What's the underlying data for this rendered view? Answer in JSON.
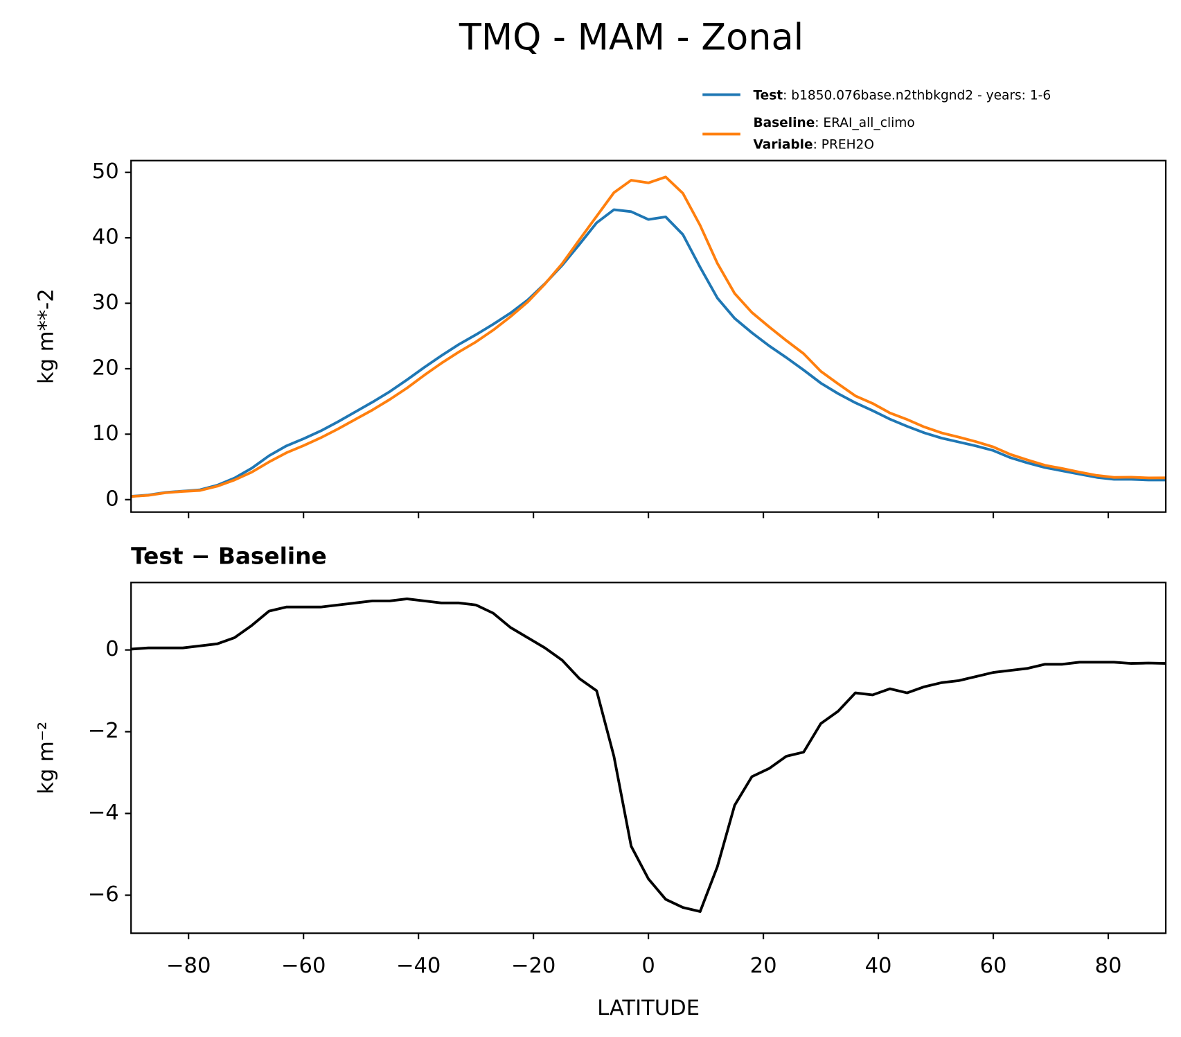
{
  "chart_data": [
    {
      "type": "line",
      "title": "TMQ - MAM - Zonal",
      "ylabel": "kg m**-2",
      "x": [
        -90,
        -87,
        -84,
        -81,
        -78,
        -75,
        -72,
        -69,
        -66,
        -63,
        -60,
        -57,
        -54,
        -51,
        -48,
        -45,
        -42,
        -39,
        -36,
        -33,
        -30,
        -27,
        -24,
        -21,
        -18,
        -15,
        -12,
        -9,
        -6,
        -3,
        0,
        3,
        6,
        9,
        12,
        15,
        18,
        21,
        24,
        27,
        30,
        33,
        36,
        39,
        42,
        45,
        48,
        51,
        54,
        57,
        60,
        63,
        66,
        69,
        72,
        75,
        78,
        81,
        84,
        87,
        90
      ],
      "series": [
        {
          "name": "Test",
          "legend_text": ": b1850.076base.n2thbkgnd2 - years: 1-6",
          "color": "#1f77b4",
          "values": [
            0.5,
            0.7,
            1.1,
            1.3,
            1.5,
            2.2,
            3.3,
            4.8,
            6.7,
            8.2,
            9.3,
            10.5,
            11.9,
            13.4,
            14.9,
            16.5,
            18.3,
            20.2,
            22.0,
            23.7,
            25.2,
            26.8,
            28.5,
            30.5,
            33.0,
            35.8,
            39.0,
            42.3,
            44.3,
            44.0,
            42.8,
            43.2,
            40.5,
            35.5,
            30.8,
            27.7,
            25.5,
            23.5,
            21.7,
            19.8,
            17.8,
            16.2,
            14.8,
            13.6,
            12.3,
            11.2,
            10.2,
            9.4,
            8.8,
            8.2,
            7.5,
            6.4,
            5.6,
            4.9,
            4.4,
            3.9,
            3.4,
            3.1,
            3.1,
            3.0,
            3.0
          ]
        },
        {
          "name": "Baseline",
          "legend_text": ": ERAI_all_climo",
          "color": "#ff7f0e",
          "values": [
            0.48,
            0.65,
            1.05,
            1.25,
            1.4,
            2.05,
            3.0,
            4.2,
            5.75,
            7.15,
            8.25,
            9.45,
            10.8,
            12.25,
            13.7,
            15.3,
            17.05,
            19.0,
            20.85,
            22.55,
            24.1,
            25.9,
            27.95,
            30.2,
            32.95,
            36.05,
            39.7,
            43.3,
            46.9,
            48.8,
            48.4,
            49.3,
            46.8,
            41.9,
            36.1,
            31.5,
            28.6,
            26.4,
            24.3,
            22.3,
            19.6,
            17.7,
            15.85,
            14.7,
            13.25,
            12.25,
            11.1,
            10.2,
            9.55,
            8.85,
            8.05,
            6.9,
            6.05,
            5.25,
            4.75,
            4.2,
            3.7,
            3.4,
            3.43,
            3.32,
            3.33
          ]
        }
      ],
      "legend_extra": {
        "label": "Variable",
        "text": ": PREH2O"
      },
      "xlim": [
        -90,
        90
      ],
      "xticks": [
        -80,
        -60,
        -40,
        -20,
        0,
        20,
        40,
        60,
        80
      ],
      "ylim": [
        -1.9,
        51.8
      ],
      "yticks": [
        0,
        10,
        20,
        30,
        40,
        50
      ],
      "grid": false
    },
    {
      "type": "line",
      "title": "Test − Baseline",
      "ylabel": "kg m⁻²",
      "xlabel": "LATITUDE",
      "x": [
        -90,
        -87,
        -84,
        -81,
        -78,
        -75,
        -72,
        -69,
        -66,
        -63,
        -60,
        -57,
        -54,
        -51,
        -48,
        -45,
        -42,
        -39,
        -36,
        -33,
        -30,
        -27,
        -24,
        -21,
        -18,
        -15,
        -12,
        -9,
        -6,
        -3,
        0,
        3,
        6,
        9,
        12,
        15,
        18,
        21,
        24,
        27,
        30,
        33,
        36,
        39,
        42,
        45,
        48,
        51,
        54,
        57,
        60,
        63,
        66,
        69,
        72,
        75,
        78,
        81,
        84,
        87,
        90
      ],
      "series": [
        {
          "color": "#000000",
          "values": [
            0.02,
            0.05,
            0.05,
            0.05,
            0.1,
            0.15,
            0.3,
            0.6,
            0.95,
            1.05,
            1.05,
            1.05,
            1.1,
            1.15,
            1.2,
            1.2,
            1.25,
            1.2,
            1.15,
            1.15,
            1.1,
            0.9,
            0.55,
            0.3,
            0.05,
            -0.25,
            -0.7,
            -1.0,
            -2.6,
            -4.8,
            -5.6,
            -6.1,
            -6.3,
            -6.4,
            -5.3,
            -3.8,
            -3.1,
            -2.9,
            -2.6,
            -2.5,
            -1.8,
            -1.5,
            -1.05,
            -1.1,
            -0.95,
            -1.05,
            -0.9,
            -0.8,
            -0.75,
            -0.65,
            -0.55,
            -0.5,
            -0.45,
            -0.35,
            -0.35,
            -0.3,
            -0.3,
            -0.3,
            -0.33,
            -0.32,
            -0.33
          ]
        }
      ],
      "xlim": [
        -90,
        90
      ],
      "xticks": [
        {
          "value": -80,
          "label": "−80"
        },
        {
          "value": -60,
          "label": "−60"
        },
        {
          "value": -40,
          "label": "−40"
        },
        {
          "value": -20,
          "label": "−20"
        },
        0,
        20,
        40,
        60,
        80
      ],
      "ylim": [
        -6.93,
        1.65
      ],
      "yticks": [
        {
          "value": -6,
          "label": "−6"
        },
        {
          "value": -4,
          "label": "−4"
        },
        {
          "value": -2,
          "label": "−2"
        },
        0
      ],
      "grid": false
    }
  ]
}
